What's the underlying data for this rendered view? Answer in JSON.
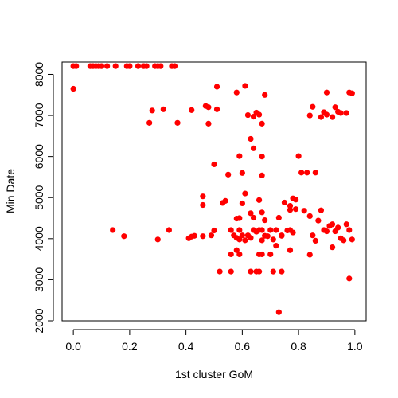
{
  "chart_data": {
    "type": "scatter",
    "title": "",
    "xlabel": "1st cluster GoM",
    "ylabel": "Min Date",
    "xlim": [
      -0.04,
      1.04
    ],
    "ylim": [
      2000,
      8300
    ],
    "xticks": [
      "0.0",
      "0.2",
      "0.4",
      "0.6",
      "0.8",
      "1.0"
    ],
    "yticks": [
      "2000",
      "3000",
      "4000",
      "5000",
      "6000",
      "7000",
      "8000"
    ],
    "point_color": "#ff0000",
    "grid": false,
    "legend": "none",
    "points": [
      [
        0.0,
        8200
      ],
      [
        0.0,
        7650
      ],
      [
        0.01,
        8200
      ],
      [
        0.06,
        8200
      ],
      [
        0.07,
        8200
      ],
      [
        0.08,
        8200
      ],
      [
        0.09,
        8200
      ],
      [
        0.1,
        8200
      ],
      [
        0.12,
        8200
      ],
      [
        0.15,
        8200
      ],
      [
        0.19,
        8200
      ],
      [
        0.2,
        8200
      ],
      [
        0.23,
        8200
      ],
      [
        0.25,
        8200
      ],
      [
        0.26,
        8200
      ],
      [
        0.29,
        8200
      ],
      [
        0.3,
        8200
      ],
      [
        0.31,
        8200
      ],
      [
        0.35,
        8200
      ],
      [
        0.36,
        8200
      ],
      [
        0.28,
        7120
      ],
      [
        0.27,
        6820
      ],
      [
        0.32,
        7150
      ],
      [
        0.37,
        6820
      ],
      [
        0.42,
        7130
      ],
      [
        0.47,
        7230
      ],
      [
        0.48,
        6800
      ],
      [
        0.48,
        7200
      ],
      [
        0.51,
        7150
      ],
      [
        0.51,
        7700
      ],
      [
        0.58,
        7560
      ],
      [
        0.61,
        7720
      ],
      [
        0.62,
        7010
      ],
      [
        0.64,
        6970
      ],
      [
        0.65,
        7070
      ],
      [
        0.66,
        7020
      ],
      [
        0.67,
        6800
      ],
      [
        0.68,
        7500
      ],
      [
        0.63,
        6430
      ],
      [
        0.59,
        6010
      ],
      [
        0.64,
        6200
      ],
      [
        0.67,
        6000
      ],
      [
        0.5,
        5810
      ],
      [
        0.55,
        5560
      ],
      [
        0.6,
        5600
      ],
      [
        0.67,
        5540
      ],
      [
        0.61,
        5100
      ],
      [
        0.53,
        4870
      ],
      [
        0.54,
        4920
      ],
      [
        0.46,
        5030
      ],
      [
        0.46,
        4820
      ],
      [
        0.58,
        4490
      ],
      [
        0.59,
        4500
      ],
      [
        0.6,
        4860
      ],
      [
        0.63,
        4620
      ],
      [
        0.64,
        4510
      ],
      [
        0.66,
        4940
      ],
      [
        0.67,
        4640
      ],
      [
        0.68,
        4450
      ],
      [
        0.73,
        4510
      ],
      [
        0.75,
        4880
      ],
      [
        0.77,
        4800
      ],
      [
        0.77,
        4700
      ],
      [
        0.78,
        4980
      ],
      [
        0.79,
        4950
      ],
      [
        0.79,
        4720
      ],
      [
        0.8,
        6010
      ],
      [
        0.81,
        5610
      ],
      [
        0.83,
        5610
      ],
      [
        0.86,
        5610
      ],
      [
        0.14,
        4210
      ],
      [
        0.18,
        4060
      ],
      [
        0.3,
        3980
      ],
      [
        0.34,
        4210
      ],
      [
        0.41,
        4010
      ],
      [
        0.42,
        4050
      ],
      [
        0.43,
        4070
      ],
      [
        0.46,
        4060
      ],
      [
        0.49,
        4080
      ],
      [
        0.5,
        4200
      ],
      [
        0.56,
        4210
      ],
      [
        0.57,
        4080
      ],
      [
        0.58,
        4020
      ],
      [
        0.59,
        3980
      ],
      [
        0.59,
        4210
      ],
      [
        0.6,
        4080
      ],
      [
        0.61,
        3960
      ],
      [
        0.62,
        4080
      ],
      [
        0.63,
        4020
      ],
      [
        0.64,
        4210
      ],
      [
        0.65,
        4170
      ],
      [
        0.66,
        4210
      ],
      [
        0.67,
        3960
      ],
      [
        0.67,
        4210
      ],
      [
        0.68,
        4070
      ],
      [
        0.69,
        4060
      ],
      [
        0.7,
        4210
      ],
      [
        0.71,
        3980
      ],
      [
        0.72,
        4210
      ],
      [
        0.74,
        4080
      ],
      [
        0.74,
        4070
      ],
      [
        0.76,
        4200
      ],
      [
        0.77,
        4210
      ],
      [
        0.78,
        4150
      ],
      [
        0.56,
        3620
      ],
      [
        0.58,
        3720
      ],
      [
        0.59,
        3620
      ],
      [
        0.66,
        3620
      ],
      [
        0.67,
        3620
      ],
      [
        0.7,
        3620
      ],
      [
        0.72,
        3830
      ],
      [
        0.77,
        3720
      ],
      [
        0.52,
        3200
      ],
      [
        0.56,
        3200
      ],
      [
        0.63,
        3200
      ],
      [
        0.65,
        3200
      ],
      [
        0.66,
        3200
      ],
      [
        0.71,
        3200
      ],
      [
        0.74,
        3200
      ],
      [
        0.73,
        2210
      ],
      [
        0.82,
        4680
      ],
      [
        0.84,
        4550
      ],
      [
        0.85,
        4080
      ],
      [
        0.87,
        4440
      ],
      [
        0.88,
        4690
      ],
      [
        0.89,
        4210
      ],
      [
        0.9,
        4180
      ],
      [
        0.91,
        4310
      ],
      [
        0.92,
        4350
      ],
      [
        0.93,
        4180
      ],
      [
        0.94,
        4270
      ],
      [
        0.95,
        4010
      ],
      [
        0.96,
        3960
      ],
      [
        0.97,
        4350
      ],
      [
        0.98,
        4210
      ],
      [
        0.99,
        3980
      ],
      [
        0.86,
        3950
      ],
      [
        0.84,
        3610
      ],
      [
        0.92,
        3790
      ],
      [
        0.98,
        3030
      ],
      [
        0.84,
        7000
      ],
      [
        0.85,
        7210
      ],
      [
        0.88,
        6960
      ],
      [
        0.89,
        7080
      ],
      [
        0.9,
        7020
      ],
      [
        0.9,
        7560
      ],
      [
        0.92,
        6960
      ],
      [
        0.93,
        7200
      ],
      [
        0.94,
        7090
      ],
      [
        0.95,
        7060
      ],
      [
        0.97,
        7060
      ],
      [
        0.98,
        7560
      ],
      [
        0.99,
        7540
      ]
    ]
  }
}
